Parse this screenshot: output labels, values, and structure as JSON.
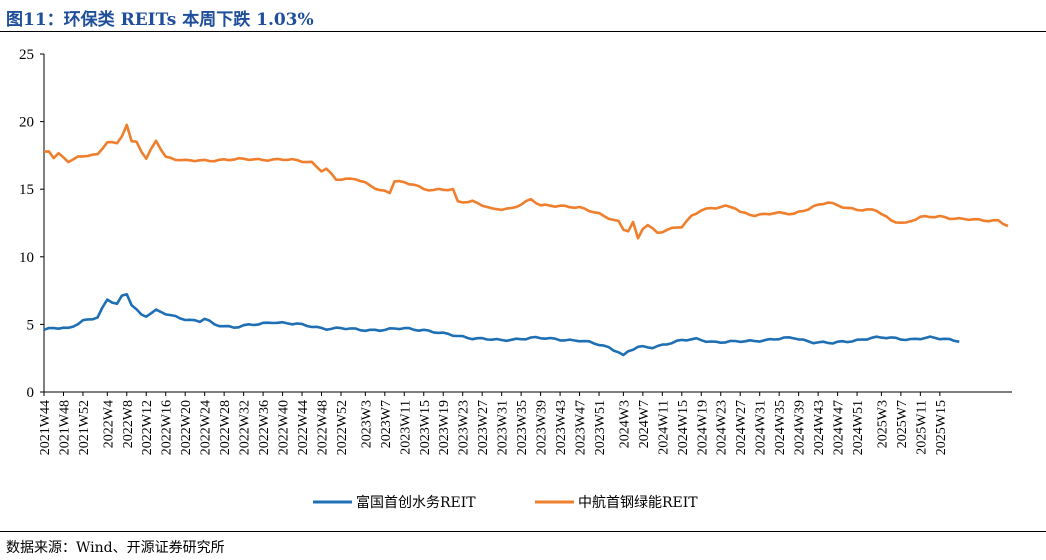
{
  "header": {
    "title": "图11：环保类 REITs 本周下跌 1.03%"
  },
  "footer": {
    "source": "数据来源：Wind、开源证券研究所"
  },
  "chart_data": {
    "type": "line",
    "title": "图11：环保类 REITs 本周下跌 1.03%",
    "xlabel": "",
    "ylabel": "",
    "ylim": [
      0,
      25
    ],
    "yticks": [
      0,
      5,
      10,
      15,
      20,
      25
    ],
    "grid": false,
    "legend_position": "bottom",
    "x_start_week": "2021W44",
    "x_tick_labels": [
      "2021W44",
      "2021W48",
      "2021W52",
      "2022W4",
      "2022W8",
      "2022W12",
      "2022W16",
      "2022W20",
      "2022W24",
      "2022W28",
      "2022W32",
      "2022W36",
      "2022W40",
      "2022W44",
      "2022W48",
      "2022W52",
      "2023W3",
      "2023W7",
      "2023W11",
      "2023W15",
      "2023W19",
      "2023W23",
      "2023W27",
      "2023W31",
      "2023W35",
      "2023W39",
      "2023W43",
      "2023W47",
      "2023W51",
      "2024W3",
      "2024W7",
      "2024W11",
      "2024W15",
      "2024W19",
      "2024W23",
      "2024W27",
      "2024W31",
      "2024W35",
      "2024W39",
      "2024W43",
      "2024W47",
      "2024W51",
      "2025W3",
      "2025W7",
      "2025W11",
      "2025W15"
    ],
    "x_tick_index": [
      0,
      4,
      8,
      13,
      17,
      21,
      25,
      29,
      33,
      37,
      41,
      45,
      49,
      53,
      57,
      61,
      66,
      70,
      74,
      78,
      82,
      86,
      90,
      94,
      98,
      102,
      106,
      110,
      114,
      119,
      123,
      127,
      131,
      135,
      139,
      143,
      147,
      151,
      155,
      159,
      163,
      167,
      172,
      176,
      180,
      184
    ],
    "series": [
      {
        "name": "富国首创水务REIT",
        "color": "#1f6fb5",
        "anchors": [
          [
            0,
            4.6
          ],
          [
            2,
            4.7
          ],
          [
            5,
            4.7
          ],
          [
            8,
            5.3
          ],
          [
            11,
            5.5
          ],
          [
            13,
            6.8
          ],
          [
            15,
            6.5
          ],
          [
            16,
            7.1
          ],
          [
            17,
            7.3
          ],
          [
            18,
            6.5
          ],
          [
            20,
            5.7
          ],
          [
            21,
            5.6
          ],
          [
            23,
            6.0
          ],
          [
            26,
            5.7
          ],
          [
            30,
            5.3
          ],
          [
            32,
            5.2
          ],
          [
            33,
            5.4
          ],
          [
            35,
            5.0
          ],
          [
            39,
            4.8
          ],
          [
            44,
            5.0
          ],
          [
            47,
            5.2
          ],
          [
            52,
            5.0
          ],
          [
            56,
            4.8
          ],
          [
            58,
            4.7
          ],
          [
            61,
            4.7
          ],
          [
            65,
            4.6
          ],
          [
            70,
            4.6
          ],
          [
            74,
            4.7
          ],
          [
            78,
            4.6
          ],
          [
            82,
            4.3
          ],
          [
            84,
            4.2
          ],
          [
            88,
            4.0
          ],
          [
            91,
            3.9
          ],
          [
            94,
            3.8
          ],
          [
            96,
            3.9
          ],
          [
            100,
            4.0
          ],
          [
            106,
            3.9
          ],
          [
            110,
            3.8
          ],
          [
            114,
            3.5
          ],
          [
            116,
            3.3
          ],
          [
            118,
            3.0
          ],
          [
            119,
            2.7
          ],
          [
            120,
            3.0
          ],
          [
            122,
            3.3
          ],
          [
            125,
            3.3
          ],
          [
            128,
            3.6
          ],
          [
            131,
            3.8
          ],
          [
            134,
            3.9
          ],
          [
            138,
            3.7
          ],
          [
            142,
            3.7
          ],
          [
            146,
            3.8
          ],
          [
            150,
            3.9
          ],
          [
            154,
            4.0
          ],
          [
            158,
            3.7
          ],
          [
            162,
            3.6
          ],
          [
            166,
            3.8
          ],
          [
            170,
            4.0
          ],
          [
            174,
            4.0
          ],
          [
            178,
            3.9
          ],
          [
            182,
            4.0
          ],
          [
            186,
            3.9
          ],
          [
            188,
            3.8
          ]
        ]
      },
      {
        "name": "中航首钢绿能REIT",
        "color": "#ef7f2d",
        "anchors": [
          [
            0,
            17.7
          ],
          [
            1,
            17.8
          ],
          [
            2,
            17.3
          ],
          [
            3,
            17.6
          ],
          [
            5,
            17.1
          ],
          [
            7,
            17.4
          ],
          [
            9,
            17.5
          ],
          [
            11,
            17.5
          ],
          [
            13,
            18.5
          ],
          [
            15,
            18.4
          ],
          [
            16,
            19.0
          ],
          [
            17,
            19.8
          ],
          [
            18,
            18.5
          ],
          [
            19,
            18.5
          ],
          [
            20,
            17.8
          ],
          [
            21,
            17.2
          ],
          [
            23,
            18.6
          ],
          [
            25,
            17.4
          ],
          [
            29,
            17.1
          ],
          [
            33,
            17.1
          ],
          [
            37,
            17.2
          ],
          [
            43,
            17.2
          ],
          [
            49,
            17.2
          ],
          [
            55,
            17.0
          ],
          [
            57,
            16.4
          ],
          [
            58,
            16.5
          ],
          [
            60,
            15.7
          ],
          [
            62,
            15.7
          ],
          [
            64,
            15.8
          ],
          [
            66,
            15.5
          ],
          [
            68,
            15.1
          ],
          [
            69,
            14.9
          ],
          [
            71,
            14.7
          ],
          [
            72,
            15.6
          ],
          [
            74,
            15.5
          ],
          [
            76,
            15.4
          ],
          [
            78,
            15.0
          ],
          [
            80,
            14.9
          ],
          [
            84,
            15.0
          ],
          [
            85,
            14.1
          ],
          [
            88,
            14.1
          ],
          [
            92,
            13.5
          ],
          [
            96,
            13.6
          ],
          [
            100,
            14.2
          ],
          [
            102,
            13.8
          ],
          [
            106,
            13.8
          ],
          [
            110,
            13.6
          ],
          [
            114,
            13.2
          ],
          [
            118,
            12.6
          ],
          [
            119,
            12.0
          ],
          [
            120,
            11.9
          ],
          [
            121,
            12.5
          ],
          [
            122,
            11.3
          ],
          [
            123,
            12.1
          ],
          [
            124,
            12.4
          ],
          [
            126,
            11.8
          ],
          [
            128,
            12.0
          ],
          [
            131,
            12.2
          ],
          [
            133,
            13.0
          ],
          [
            135,
            13.5
          ],
          [
            137,
            13.6
          ],
          [
            140,
            13.7
          ],
          [
            142,
            13.6
          ],
          [
            143,
            13.3
          ],
          [
            146,
            13.1
          ],
          [
            150,
            13.2
          ],
          [
            154,
            13.2
          ],
          [
            158,
            13.7
          ],
          [
            161,
            14.0
          ],
          [
            163,
            13.8
          ],
          [
            167,
            13.5
          ],
          [
            171,
            13.4
          ],
          [
            174,
            12.7
          ],
          [
            177,
            12.5
          ],
          [
            180,
            12.9
          ],
          [
            184,
            13.0
          ],
          [
            188,
            12.8
          ],
          [
            192,
            12.7
          ],
          [
            196,
            12.7
          ],
          [
            197,
            12.5
          ],
          [
            198,
            12.3
          ]
        ]
      }
    ]
  }
}
